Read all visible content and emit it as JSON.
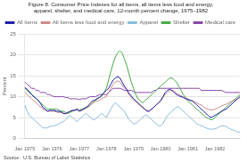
{
  "chart_data": {
    "type": "line",
    "title": "Figure 8. Consumer Price Indexes for all items, all items less food and energy,",
    "subtitle": "apparel, shelter, and medical care, 12-month percent change, 1975–1982",
    "ylabel": "Percent",
    "annotations": [
      "Source:  U.S. Bureau of Labor Statistics"
    ],
    "categories": [
      "Jan 1975",
      null,
      null,
      null,
      null,
      null,
      null,
      null,
      null,
      null,
      null,
      null,
      "Jan 1976",
      null,
      null,
      null,
      null,
      null,
      null,
      null,
      null,
      null,
      null,
      null,
      "Jan 1977",
      null,
      null,
      null,
      null,
      null,
      null,
      null,
      null,
      null,
      null,
      null,
      "Jan 1978",
      null,
      null,
      null,
      null,
      null,
      null,
      null,
      null,
      null,
      null,
      null,
      "Jan 1979",
      null,
      null,
      null,
      null,
      null,
      null,
      null,
      null,
      null,
      null,
      null,
      "Jan 1980",
      null,
      null,
      null,
      null,
      null,
      null,
      null,
      null,
      null,
      null,
      null,
      "Jan 1981",
      null,
      null,
      null,
      null,
      null,
      null,
      null,
      null,
      null,
      null,
      null,
      "Jan 1982",
      null,
      null,
      null,
      null,
      null,
      null,
      null,
      null,
      null,
      null,
      null
    ],
    "series": [
      {
        "name": "All Items",
        "color": "#1a1aaa",
        "values": [
          12.2,
          11.8,
          11.2,
          10.5,
          10.0,
          9.6,
          9.1,
          8.3,
          7.4,
          7.0,
          6.5,
          6.7,
          6.7,
          6.7,
          6.5,
          6.5,
          6.4,
          6.0,
          5.9,
          6.2,
          6.5,
          6.7,
          6.7,
          7.0,
          6.5,
          6.7,
          7.0,
          7.4,
          7.8,
          8.5,
          9.0,
          9.2,
          9.6,
          9.8,
          10.4,
          11.0,
          11.5,
          12.0,
          13.0,
          14.0,
          14.5,
          14.8,
          14.5,
          13.5,
          12.5,
          11.8,
          10.8,
          10.2,
          9.5,
          9.0,
          8.5,
          8.0,
          7.5,
          7.0,
          6.5,
          6.5,
          7.0,
          7.5,
          8.0,
          8.5,
          9.0,
          10.0,
          11.0,
          11.5,
          11.8,
          11.5,
          11.0,
          10.5,
          10.2,
          10.0,
          9.8,
          9.5,
          9.3,
          9.1,
          9.0,
          8.5,
          8.0,
          7.5,
          7.0,
          6.5,
          6.0,
          5.5,
          5.0,
          5.2,
          5.5,
          5.8,
          6.2,
          6.5,
          6.8,
          7.0,
          7.5,
          8.0,
          8.5,
          9.0,
          9.5,
          10.0
        ]
      },
      {
        "name": "All Items less food and energy",
        "color": "#cc8888",
        "values": [
          11.0,
          10.5,
          10.0,
          9.5,
          9.0,
          8.5,
          8.0,
          7.5,
          7.0,
          6.8,
          6.5,
          6.5,
          6.5,
          6.5,
          6.3,
          6.2,
          6.2,
          6.0,
          6.0,
          6.2,
          6.5,
          6.7,
          6.7,
          6.8,
          6.7,
          6.8,
          7.0,
          7.2,
          7.5,
          8.0,
          8.5,
          8.8,
          9.0,
          9.2,
          9.5,
          9.8,
          10.0,
          11.0,
          12.0,
          13.0,
          13.5,
          13.8,
          13.5,
          12.8,
          12.0,
          11.5,
          10.5,
          9.8,
          9.2,
          8.8,
          8.3,
          7.8,
          7.4,
          7.0,
          6.7,
          6.7,
          7.0,
          7.5,
          8.0,
          8.5,
          9.0,
          9.8,
          10.5,
          11.0,
          11.5,
          11.5,
          11.3,
          10.8,
          10.5,
          10.2,
          10.0,
          9.8,
          9.5,
          9.2,
          9.0,
          8.8,
          8.5,
          8.2,
          8.0,
          7.5,
          7.2,
          7.0,
          6.8,
          6.8,
          7.0,
          7.2,
          7.5,
          7.8,
          8.0,
          8.2,
          8.5,
          8.8,
          9.0,
          9.2,
          9.5,
          9.8
        ]
      },
      {
        "name": "Apparel",
        "color": "#88bbdd",
        "values": [
          8.0,
          6.5,
          5.5,
          5.0,
          4.5,
          4.0,
          3.5,
          3.0,
          2.5,
          2.5,
          2.5,
          2.8,
          3.0,
          3.0,
          3.2,
          3.5,
          3.8,
          4.0,
          4.5,
          5.0,
          5.5,
          5.0,
          4.5,
          4.0,
          4.5,
          5.0,
          5.5,
          6.0,
          5.5,
          5.0,
          4.5,
          4.5,
          5.0,
          5.5,
          6.0,
          5.5,
          5.0,
          6.0,
          7.0,
          8.0,
          8.5,
          8.0,
          7.5,
          7.0,
          6.5,
          5.5,
          4.5,
          4.0,
          3.5,
          3.5,
          4.0,
          4.5,
          5.0,
          5.5,
          5.5,
          5.0,
          4.5,
          4.0,
          3.5,
          3.0,
          3.0,
          3.5,
          4.5,
          5.5,
          6.0,
          6.5,
          7.0,
          7.5,
          7.5,
          7.0,
          6.5,
          6.0,
          5.5,
          5.0,
          4.5,
          4.0,
          3.5,
          3.2,
          3.0,
          2.8,
          2.5,
          2.3,
          2.2,
          2.2,
          2.3,
          2.5,
          2.8,
          3.0,
          3.0,
          2.8,
          2.5,
          2.2,
          2.0,
          1.8,
          1.5,
          1.5
        ]
      },
      {
        "name": "Shelter",
        "color": "#44aa44",
        "values": [
          12.0,
          11.5,
          11.0,
          10.5,
          10.0,
          9.5,
          9.0,
          8.5,
          8.0,
          7.5,
          7.0,
          7.0,
          7.0,
          7.0,
          7.0,
          6.8,
          6.5,
          6.5,
          6.2,
          6.0,
          6.2,
          6.5,
          6.8,
          7.0,
          6.8,
          7.0,
          7.2,
          7.5,
          7.5,
          8.0,
          8.5,
          9.0,
          9.5,
          9.8,
          10.2,
          11.0,
          12.0,
          14.0,
          16.0,
          18.0,
          19.5,
          20.5,
          21.0,
          20.5,
          19.0,
          17.5,
          15.5,
          13.5,
          12.0,
          10.5,
          9.5,
          9.0,
          8.5,
          9.0,
          9.5,
          10.0,
          10.5,
          11.0,
          11.5,
          12.0,
          12.5,
          13.0,
          13.5,
          14.0,
          14.5,
          14.5,
          14.0,
          13.5,
          12.5,
          11.5,
          10.5,
          9.8,
          9.0,
          8.5,
          8.0,
          7.5,
          7.0,
          6.5,
          6.0,
          5.5,
          5.0,
          4.8,
          4.5,
          4.5,
          5.0,
          5.5,
          6.0,
          6.5,
          7.0,
          7.5,
          8.0,
          8.5,
          9.0,
          9.5,
          10.0,
          10.5
        ]
      },
      {
        "name": "Medical care",
        "color": "#8844aa",
        "values": [
          13.5,
          13.0,
          12.5,
          12.0,
          12.0,
          11.5,
          11.5,
          11.0,
          11.0,
          11.0,
          10.5,
          10.5,
          10.2,
          10.0,
          10.0,
          10.0,
          10.0,
          10.0,
          9.8,
          9.8,
          9.5,
          9.5,
          9.5,
          9.5,
          9.3,
          9.5,
          9.5,
          9.5,
          9.8,
          10.0,
          10.0,
          10.0,
          10.2,
          10.5,
          10.5,
          10.5,
          10.5,
          11.0,
          11.5,
          12.0,
          12.0,
          12.0,
          12.0,
          11.8,
          11.5,
          11.5,
          11.5,
          11.5,
          11.2,
          11.0,
          11.0,
          11.0,
          11.0,
          11.0,
          11.0,
          11.0,
          11.0,
          11.5,
          11.5,
          12.0,
          12.0,
          12.0,
          12.0,
          12.0,
          12.0,
          12.0,
          12.0,
          12.0,
          12.0,
          12.0,
          12.0,
          12.0,
          12.0,
          12.0,
          12.0,
          12.0,
          12.0,
          12.0,
          11.5,
          11.5,
          11.5,
          11.5,
          11.5,
          11.5,
          11.5,
          11.5,
          11.5,
          11.5,
          11.2,
          11.0,
          11.0,
          11.0,
          11.0,
          11.0,
          11.0,
          11.0
        ]
      }
    ],
    "ylim": [
      0,
      25
    ],
    "yticks": [
      0,
      5,
      10,
      15,
      20,
      25
    ],
    "grid": "y",
    "legend": "upper left"
  }
}
